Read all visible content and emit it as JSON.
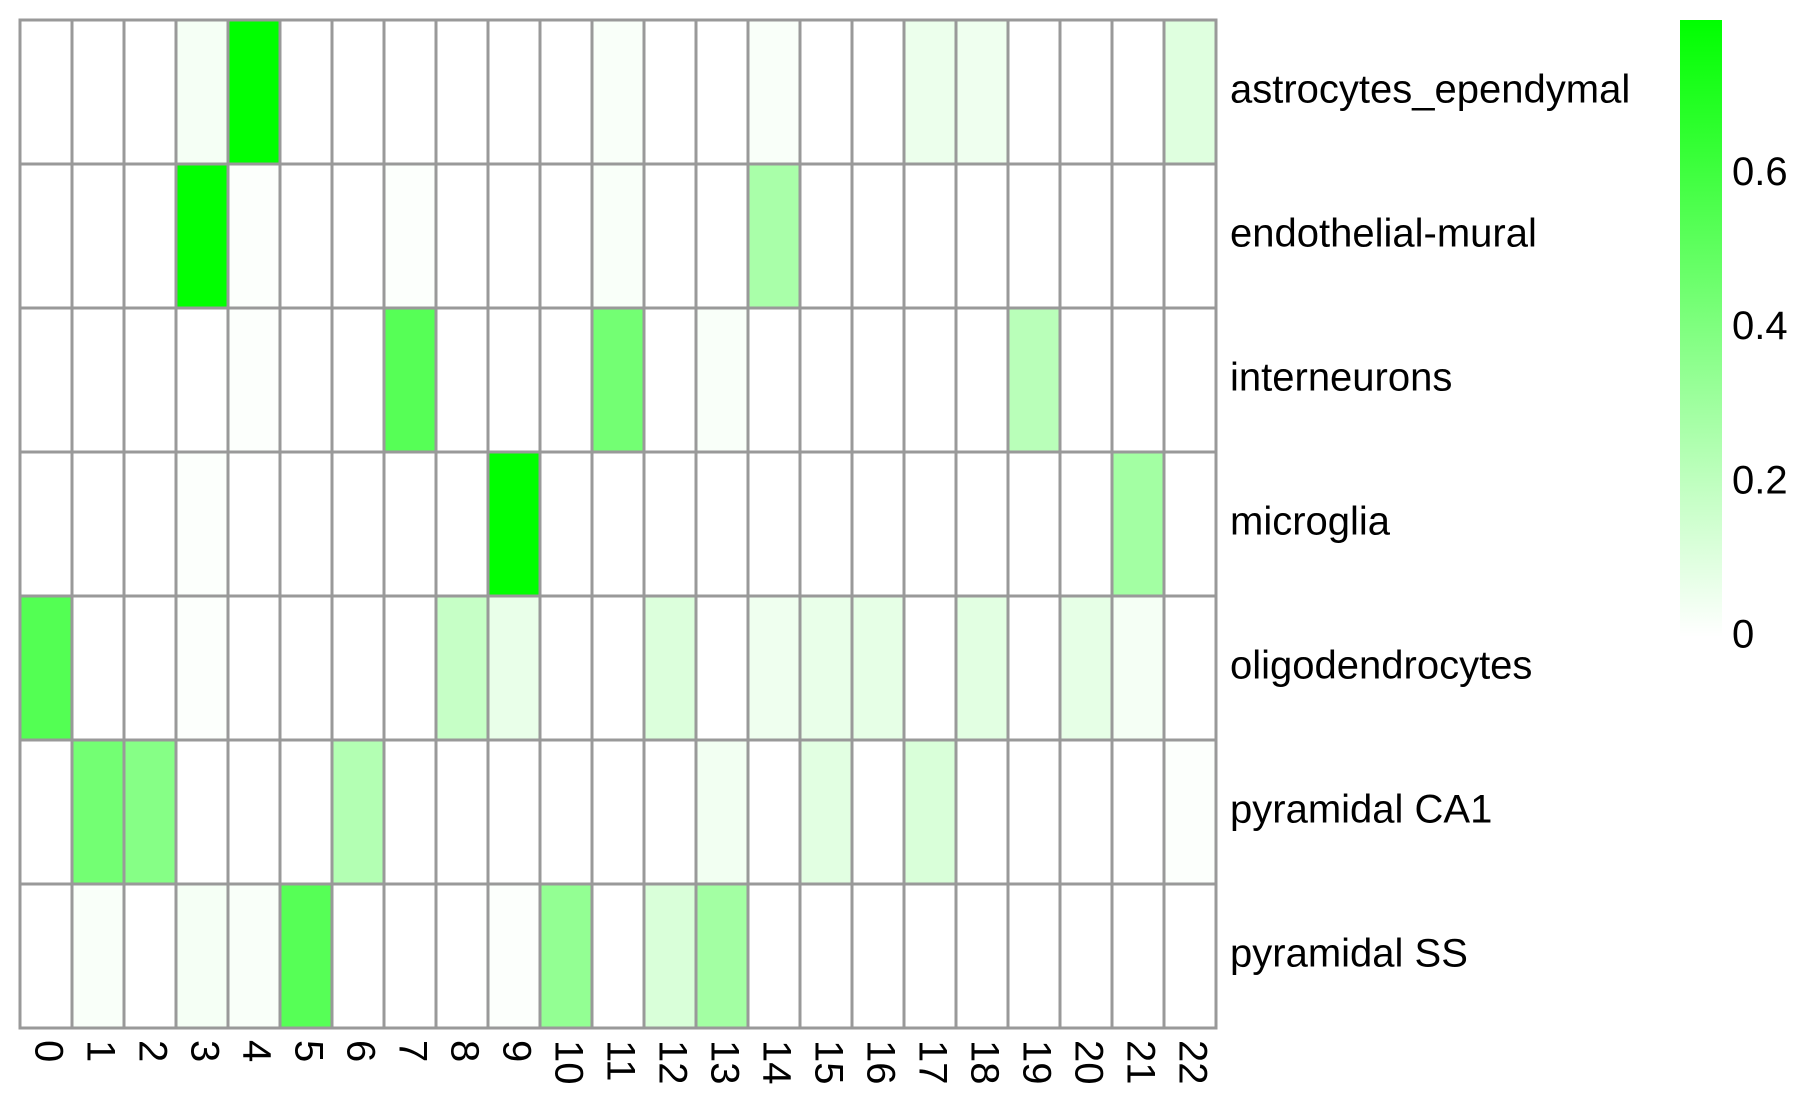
{
  "chart_data": {
    "type": "heatmap",
    "title": "",
    "xlabel": "",
    "ylabel": "",
    "columns": [
      "0",
      "1",
      "2",
      "3",
      "4",
      "5",
      "6",
      "7",
      "8",
      "9",
      "10",
      "11",
      "12",
      "13",
      "14",
      "15",
      "16",
      "17",
      "18",
      "19",
      "20",
      "21",
      "22"
    ],
    "rows": [
      "astrocytes_ependymal",
      "endothelial-mural",
      "interneurons",
      "microglia",
      "oligodendrocytes",
      "pyramidal CA1",
      "pyramidal SS"
    ],
    "values": [
      [
        0,
        0,
        0,
        0.03,
        0.8,
        0,
        0,
        0,
        0,
        0,
        0,
        0.02,
        0,
        0,
        0.02,
        0,
        0,
        0.06,
        0.05,
        0,
        0,
        0,
        0.1
      ],
      [
        0,
        0,
        0,
        0.8,
        0.01,
        0,
        0,
        0.01,
        0,
        0,
        0,
        0.02,
        0,
        0,
        0.27,
        0,
        0,
        0,
        0,
        0,
        0,
        0,
        0
      ],
      [
        0,
        0,
        0,
        0,
        0.01,
        0,
        0,
        0.53,
        0,
        0,
        0,
        0.44,
        0,
        0.02,
        0,
        0,
        0,
        0,
        0,
        0.22,
        0,
        0,
        0
      ],
      [
        0,
        0,
        0,
        0.01,
        0,
        0,
        0,
        0,
        0,
        0.8,
        0,
        0,
        0,
        0,
        0,
        0,
        0,
        0,
        0,
        0,
        0,
        0.29,
        0
      ],
      [
        0.54,
        0,
        0,
        0.01,
        0,
        0,
        0,
        0,
        0.18,
        0.07,
        0,
        0,
        0.11,
        0,
        0.05,
        0.07,
        0.08,
        0,
        0.09,
        0,
        0.08,
        0.03,
        0
      ],
      [
        0,
        0.44,
        0.38,
        0,
        0,
        0,
        0.24,
        0,
        0,
        0,
        0,
        0,
        0,
        0.04,
        0,
        0.09,
        0,
        0.12,
        0,
        0,
        0,
        0,
        0.01
      ],
      [
        0,
        0.02,
        0,
        0.03,
        0.02,
        0.53,
        0,
        0,
        0,
        0.01,
        0.34,
        0,
        0.12,
        0.29,
        0,
        0,
        0,
        0,
        0,
        0,
        0,
        0,
        0
      ]
    ],
    "color_scale": {
      "min": 0,
      "max": 0.8,
      "low_color": "#ffffff",
      "high_color": "#00ff00"
    },
    "legend": {
      "ticks": [
        0,
        0.2,
        0.4,
        0.6
      ],
      "tick_labels": [
        "0",
        "0.2",
        "0.4",
        "0.6"
      ],
      "placement": "right"
    },
    "grid_color": "#999999"
  }
}
